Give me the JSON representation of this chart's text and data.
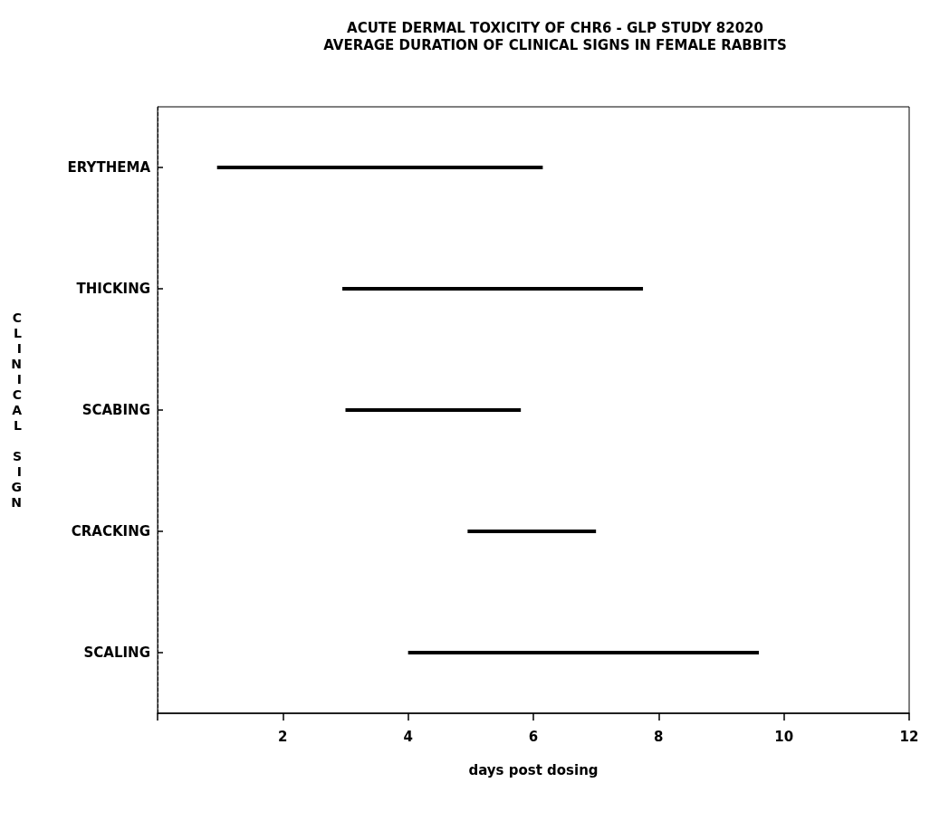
{
  "chart_data": {
    "type": "bar",
    "orientation": "horizontal",
    "title": "ACUTE DERMAL TOXICITY OF CHR6 - GLP STUDY 82020\nAVERAGE DURATION OF CLINICAL SIGNS IN FEMALE RABBITS",
    "xlabel": "days post dosing",
    "ylabel": "CLINICAL SIGN",
    "categories": [
      "ERYTHEMA",
      "THICKING",
      "SCABING",
      "CRACKING",
      "SCALING"
    ],
    "base": [
      0.95,
      2.95,
      3.0,
      4.95,
      4.0
    ],
    "values": [
      5.2,
      4.8,
      2.8,
      2.05,
      5.6
    ],
    "color": "#000000",
    "xlim": [
      0,
      12
    ],
    "xticks": [
      {
        "value": 0,
        "label": null
      },
      2,
      4,
      6,
      8,
      10,
      12
    ],
    "grid": false
  }
}
